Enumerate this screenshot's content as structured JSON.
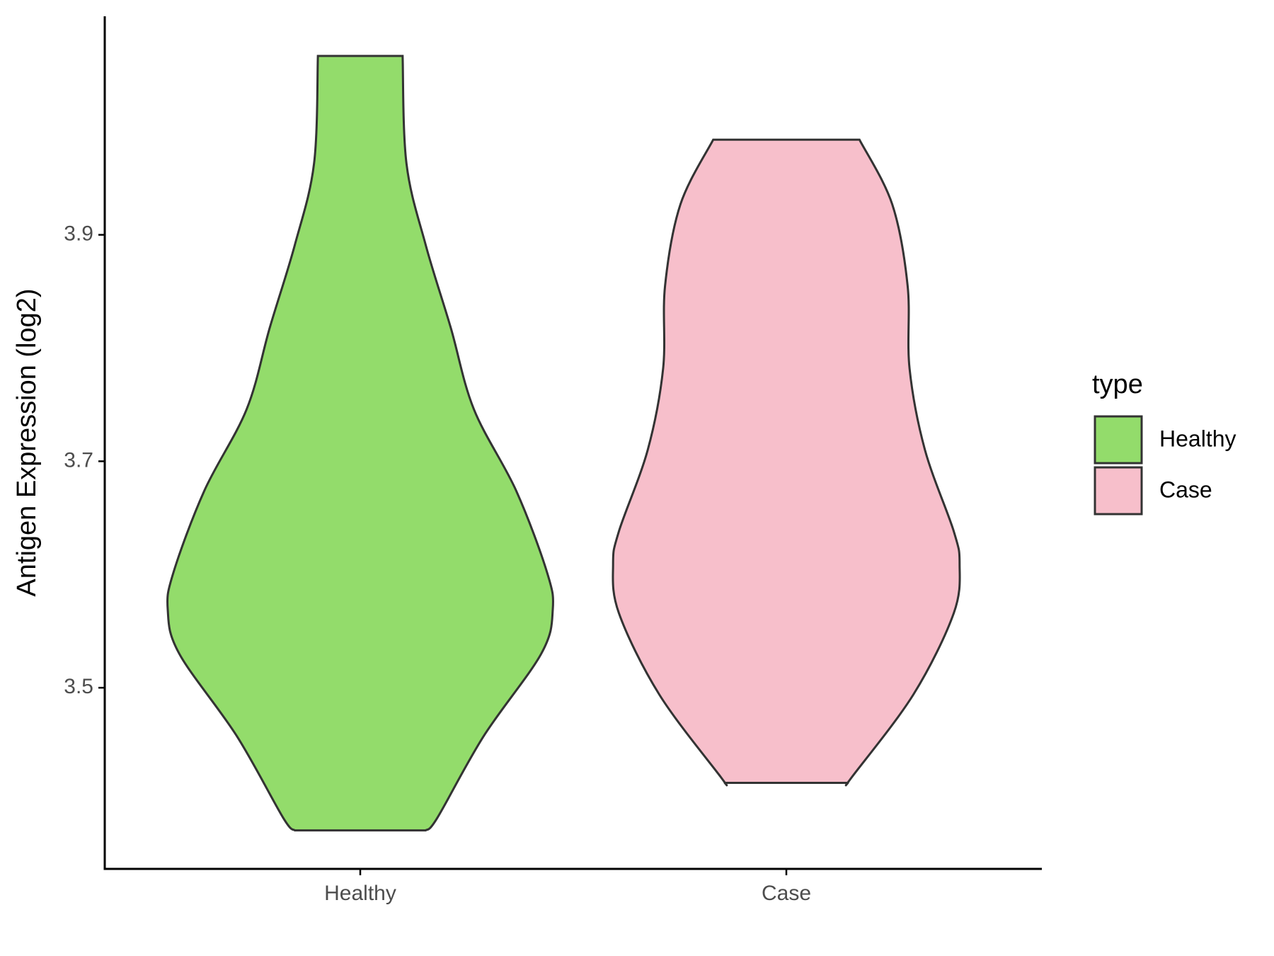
{
  "chart_data": {
    "type": "violin",
    "ylabel": "Antigen Expression (log2)",
    "categories": [
      "Healthy",
      "Case"
    ],
    "legend_title": "type",
    "legend": "right",
    "ylim": [
      3.34,
      4.093
    ],
    "yticks": [
      3.5,
      3.7,
      3.9
    ],
    "series": [
      {
        "name": "Healthy",
        "color": "#93dc6b",
        "values": [
          4.058,
          3.963,
          3.891,
          3.818,
          3.746,
          3.674,
          3.602,
          3.569,
          3.53,
          3.457,
          3.385,
          3.374
        ],
        "density": [
          0.22,
          0.24,
          0.34,
          0.47,
          0.59,
          0.81,
          0.97,
          1.0,
          0.94,
          0.64,
          0.4,
          0.34
        ]
      },
      {
        "name": "Case",
        "color": "#f7bfcb",
        "values": [
          3.984,
          3.927,
          3.855,
          3.782,
          3.71,
          3.638,
          3.609,
          3.566,
          3.494,
          3.421,
          3.416
        ],
        "density": [
          0.38,
          0.55,
          0.63,
          0.64,
          0.72,
          0.87,
          0.9,
          0.87,
          0.66,
          0.34,
          0.32
        ]
      }
    ]
  }
}
